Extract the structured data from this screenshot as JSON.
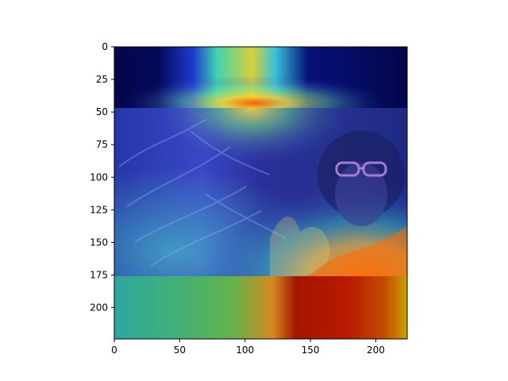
{
  "figure": {
    "x_ticks": [
      0,
      50,
      100,
      150,
      200
    ],
    "y_ticks": [
      0,
      25,
      50,
      75,
      100,
      125,
      150,
      175,
      200
    ],
    "x_range": [
      0,
      224
    ],
    "y_range": [
      0,
      224
    ],
    "image_rows": {
      "photo_top": 47,
      "photo_bottom": 175
    },
    "image_description_icon": "heatmap-overlay-photo"
  },
  "colors": {
    "deep_blue": "#03064a",
    "mid_blue": "#2a34c8",
    "cyan": "#37d6d0",
    "green": "#6fd06a",
    "yellow": "#f2e43a",
    "orange": "#ff7a12",
    "dark_red": "#8a0b00",
    "frame": "#000000"
  }
}
